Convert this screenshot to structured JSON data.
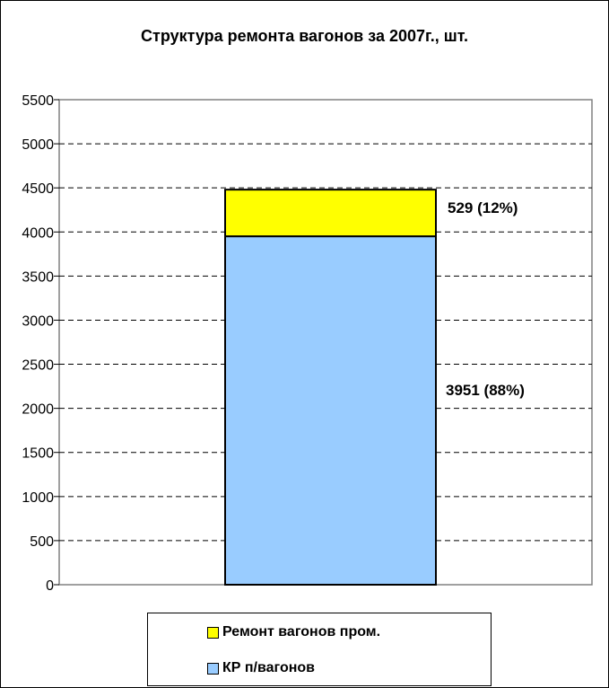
{
  "chart_data": {
    "type": "bar",
    "stacked": true,
    "title": "Структура ремонта вагонов за 2007г., шт.",
    "categories": [
      ""
    ],
    "ylim": [
      0,
      5500
    ],
    "ytick_step": 500,
    "yticks": [
      "0",
      "500",
      "1000",
      "1500",
      "2000",
      "2500",
      "3000",
      "3500",
      "4000",
      "4500",
      "5000",
      "5500"
    ],
    "grid": true,
    "legend_position": "bottom",
    "series": [
      {
        "name": "КР п/вагонов",
        "values": [
          3951
        ],
        "label": "3951 (88%)",
        "color": "#99ccff"
      },
      {
        "name": "Ремонт вагонов пром.",
        "values": [
          529
        ],
        "label": "529 (12%)",
        "color": "#ffff00"
      }
    ],
    "legend": [
      "Ремонт вагонов пром.",
      "КР п/вагонов"
    ],
    "plot_background": "#ffffff",
    "border_color": "#808080"
  }
}
